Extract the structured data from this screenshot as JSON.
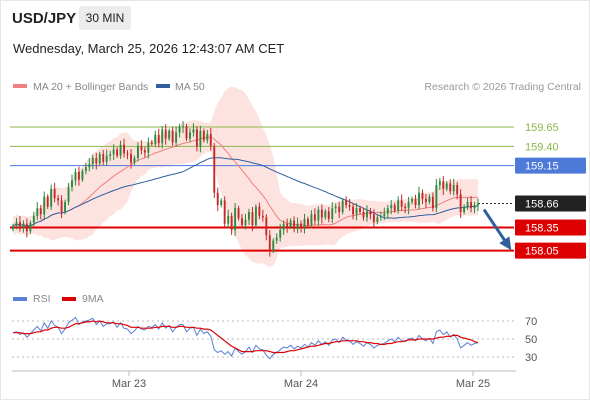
{
  "header": {
    "symbol": "USD/JPY",
    "timeframe": "30 MIN",
    "timestamp": "Wednesday, March 25, 2026 12:43:07 AM CET"
  },
  "colors": {
    "ma20": "#f08080",
    "ma50": "#2f5f9f",
    "band": "#fbd9d6",
    "bull": "#2b8a3e",
    "bear": "#c62828",
    "resistance": "#8ab84a",
    "pivot": "#4d79d9",
    "support": "#dd0000",
    "arrow": "#2f5f9f",
    "rsi": "#5a7fd6",
    "rsi_ma": "#dd0000"
  },
  "chart_data": [
    {
      "type": "candlestick",
      "legend": [
        "MA 20 + Bollinger Bands",
        "MA 50"
      ],
      "watermark": "Research © 2026 Trading Central",
      "x_tick_labels": [
        "Mar 23",
        "Mar 24",
        "Mar 25"
      ],
      "ylim": [
        157.8,
        160.0
      ],
      "current_price": 158.66,
      "levels": [
        {
          "label": "159.65",
          "value": 159.65,
          "kind": "resistance"
        },
        {
          "label": "159.40",
          "value": 159.4,
          "kind": "resistance"
        },
        {
          "label": "159.15",
          "value": 159.15,
          "kind": "pivot"
        },
        {
          "label": "158.66",
          "value": 158.66,
          "kind": "last"
        },
        {
          "label": "158.35",
          "value": 158.35,
          "kind": "support"
        },
        {
          "label": "158.05",
          "value": 158.05,
          "kind": "support"
        }
      ],
      "close": [
        158.37,
        158.42,
        158.35,
        158.4,
        158.3,
        158.41,
        158.5,
        158.6,
        158.52,
        158.75,
        158.62,
        158.85,
        158.73,
        158.7,
        158.55,
        158.68,
        158.87,
        158.96,
        159.07,
        158.97,
        159.08,
        159.13,
        159.17,
        159.25,
        159.18,
        159.3,
        159.2,
        159.28,
        159.3,
        159.36,
        159.28,
        159.42,
        159.31,
        159.3,
        159.19,
        159.25,
        159.4,
        159.35,
        159.32,
        159.45,
        159.43,
        159.55,
        159.44,
        159.62,
        159.5,
        159.6,
        159.45,
        159.58,
        159.65,
        159.66,
        159.5,
        159.58,
        159.62,
        159.4,
        159.6,
        159.48,
        159.56,
        159.4,
        158.8,
        158.64,
        158.7,
        158.4,
        158.5,
        158.32,
        158.6,
        158.47,
        158.38,
        158.45,
        158.55,
        158.38,
        158.62,
        158.5,
        158.48,
        158.25,
        158.05,
        158.18,
        158.22,
        158.32,
        158.4,
        158.36,
        158.44,
        158.33,
        158.4,
        158.35,
        158.46,
        158.38,
        158.52,
        158.44,
        158.58,
        158.48,
        158.56,
        158.46,
        158.6,
        158.62,
        158.55,
        158.7,
        158.64,
        158.62,
        158.52,
        158.6,
        158.55,
        158.48,
        158.56,
        158.52,
        158.42,
        158.48,
        158.5,
        158.53,
        158.6,
        158.64,
        158.57,
        158.7,
        158.62,
        158.6,
        158.68,
        158.72,
        158.64,
        158.8,
        158.72,
        158.68,
        158.75,
        158.6,
        158.9,
        158.95,
        158.85,
        158.92,
        158.82,
        158.9,
        158.78,
        158.55,
        158.62,
        158.68,
        158.6,
        158.64,
        158.66
      ]
    },
    {
      "type": "line",
      "legend": [
        "RSI",
        "9MA"
      ],
      "y_tick_labels": [
        "70",
        "50",
        "30"
      ],
      "ylim": [
        20,
        80
      ],
      "series": [
        {
          "name": "RSI",
          "values": [
            57,
            58,
            55,
            57,
            52,
            56,
            60,
            64,
            59,
            68,
            62,
            70,
            65,
            63,
            56,
            61,
            68,
            71,
            74,
            66,
            69,
            70,
            71,
            73,
            66,
            70,
            64,
            67,
            67,
            69,
            63,
            68,
            62,
            61,
            56,
            59,
            64,
            61,
            60,
            64,
            63,
            66,
            61,
            68,
            62,
            65,
            58,
            63,
            66,
            66,
            58,
            62,
            63,
            54,
            61,
            56,
            58,
            53,
            38,
            35,
            37,
            33,
            36,
            31,
            40,
            36,
            33,
            36,
            41,
            35,
            43,
            39,
            38,
            32,
            28,
            33,
            35,
            38,
            41,
            40,
            43,
            39,
            42,
            40,
            44,
            41,
            46,
            43,
            48,
            44,
            47,
            43,
            49,
            50,
            46,
            52,
            49,
            48,
            44,
            47,
            45,
            42,
            46,
            44,
            40,
            43,
            44,
            45,
            48,
            50,
            47,
            52,
            48,
            47,
            50,
            51,
            48,
            54,
            50,
            48,
            51,
            45,
            58,
            60,
            55,
            58,
            52,
            55,
            50,
            40,
            43,
            46,
            43,
            45,
            46
          ]
        },
        {
          "name": "9MA",
          "values": [
            57,
            57,
            57,
            56,
            56,
            56,
            57,
            58,
            58,
            60,
            60,
            62,
            63,
            63,
            62,
            62,
            63,
            65,
            67,
            67,
            68,
            69,
            69,
            70,
            69,
            70,
            69,
            68,
            68,
            68,
            67,
            67,
            66,
            65,
            63,
            63,
            63,
            62,
            62,
            62,
            62,
            63,
            63,
            64,
            64,
            64,
            63,
            63,
            64,
            64,
            63,
            63,
            63,
            62,
            62,
            61,
            61,
            60,
            57,
            54,
            51,
            48,
            45,
            42,
            40,
            38,
            36,
            36,
            36,
            36,
            37,
            37,
            37,
            37,
            36,
            35,
            35,
            35,
            35,
            36,
            37,
            37,
            38,
            39,
            40,
            41,
            42,
            42,
            43,
            44,
            45,
            45,
            46,
            47,
            47,
            48,
            48,
            48,
            48,
            48,
            47,
            47,
            46,
            46,
            45,
            45,
            44,
            44,
            45,
            45,
            46,
            47,
            47,
            48,
            49,
            49,
            49,
            50,
            50,
            50,
            50,
            50,
            51,
            52,
            52,
            53,
            53,
            54,
            54,
            52,
            51,
            50,
            49,
            47,
            46
          ]
        }
      ],
      "hlines": [
        70,
        50,
        30
      ]
    }
  ]
}
